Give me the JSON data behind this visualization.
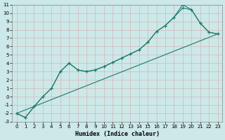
{
  "xlabel": "Humidex (Indice chaleur)",
  "background_color": "#cce8e8",
  "grid_color": "#bbdddd",
  "line_color": "#1a7a6a",
  "xlim": [
    -0.5,
    23.5
  ],
  "ylim": [
    -3,
    11
  ],
  "xticks": [
    0,
    1,
    2,
    3,
    4,
    5,
    6,
    7,
    8,
    9,
    10,
    11,
    12,
    13,
    14,
    15,
    16,
    17,
    18,
    19,
    20,
    21,
    22,
    23
  ],
  "yticks": [
    -3,
    -2,
    -1,
    0,
    1,
    2,
    3,
    4,
    5,
    6,
    7,
    8,
    9,
    10,
    11
  ],
  "line1_x": [
    0,
    23
  ],
  "line1_y": [
    -2.0,
    7.5
  ],
  "line2_x": [
    0,
    1,
    2,
    3,
    4,
    5,
    6,
    7,
    8,
    9,
    10,
    11,
    12,
    13,
    14,
    15,
    16,
    17,
    18,
    19,
    20,
    21,
    22,
    23
  ],
  "line2_y": [
    -2.0,
    -2.5,
    -1.2,
    0.0,
    1.0,
    3.0,
    4.0,
    3.2,
    3.0,
    3.2,
    3.6,
    4.1,
    4.6,
    5.1,
    5.6,
    6.5,
    7.8,
    8.5,
    9.5,
    10.6,
    10.4,
    8.8,
    7.7,
    7.5
  ],
  "line3_x": [
    0,
    1,
    2,
    3,
    4,
    5,
    6,
    7,
    8,
    9,
    10,
    11,
    12,
    13,
    14,
    15,
    16,
    17,
    18,
    19,
    20,
    21,
    22,
    23
  ],
  "line3_y": [
    -2.0,
    -2.5,
    -1.2,
    0.0,
    1.0,
    3.0,
    4.0,
    3.2,
    3.0,
    3.2,
    3.6,
    4.1,
    4.6,
    5.1,
    5.6,
    6.5,
    7.8,
    8.5,
    9.5,
    11.0,
    10.4,
    8.8,
    7.7,
    7.5
  ]
}
